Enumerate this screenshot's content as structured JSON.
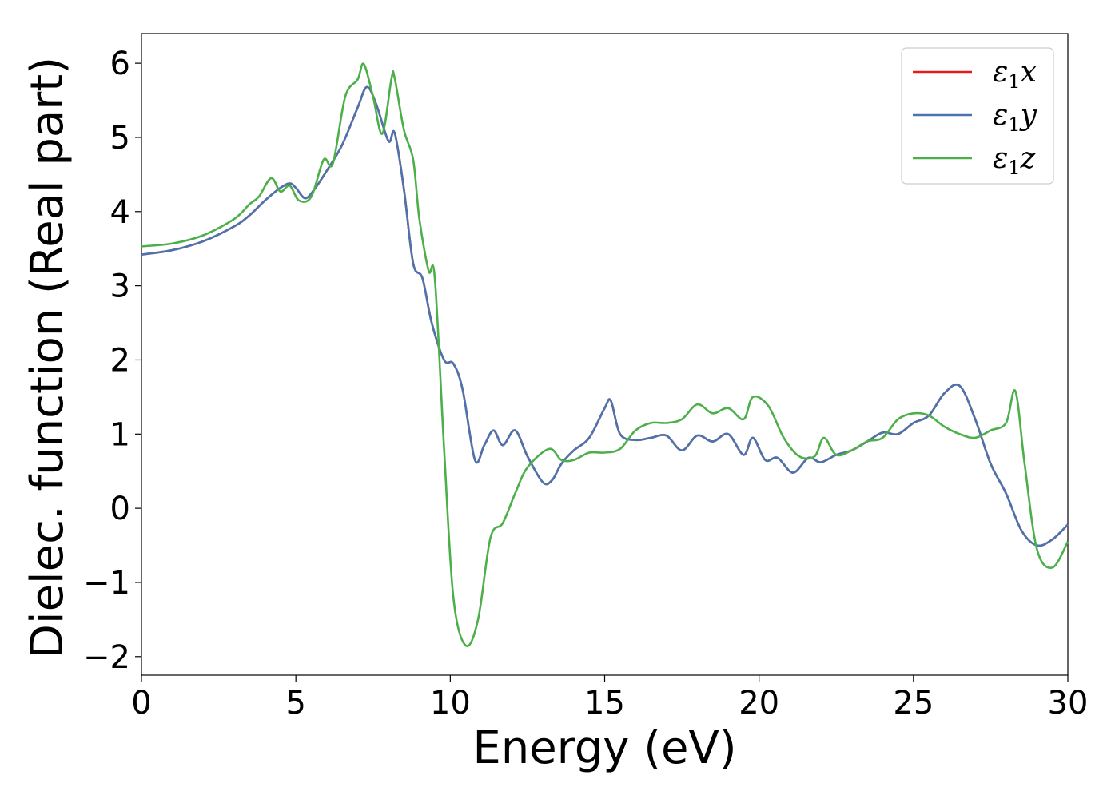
{
  "chart_data": {
    "type": "line",
    "title": "",
    "xlabel": "Energy (eV)",
    "ylabel": "Dielec. function (Real part)",
    "xlim": [
      0,
      30
    ],
    "ylim": [
      -2.25,
      6.4
    ],
    "xticks": [
      0,
      5,
      10,
      15,
      20,
      25,
      30
    ],
    "xtick_labels": [
      "0",
      "5",
      "10",
      "15",
      "20",
      "25",
      "30"
    ],
    "yticks": [
      -2,
      -1,
      0,
      1,
      2,
      3,
      4,
      5,
      6
    ],
    "ytick_labels": [
      "−2",
      "−1",
      "0",
      "1",
      "2",
      "3",
      "4",
      "5",
      "6"
    ],
    "grid": false,
    "legend_position": "top-right",
    "series": [
      {
        "name": "ε₁x",
        "legend_main": "ε",
        "legend_sub": "1",
        "legend_var": "x",
        "color": "#e41a1c",
        "x": [
          0,
          1,
          2,
          3,
          3.5,
          4,
          4.5,
          4.8,
          5,
          5.3,
          5.6,
          6,
          6.5,
          7,
          7.3,
          7.6,
          8,
          8.2,
          8.5,
          8.8,
          9.1,
          9.4,
          9.8,
          10.1,
          10.4,
          10.8,
          11.1,
          11.4,
          11.7,
          12.1,
          12.5,
          13,
          13.3,
          13.6,
          14,
          14.5,
          15,
          15.2,
          15.5,
          16,
          16.5,
          17,
          17.5,
          18,
          18.5,
          19,
          19.5,
          19.8,
          20.2,
          20.6,
          21.1,
          21.6,
          22,
          22.5,
          23,
          23.5,
          24,
          24.5,
          25,
          25.5,
          26,
          26.5,
          27,
          27.5,
          28,
          28.5,
          29,
          29.5,
          30
        ],
        "y": [
          3.42,
          3.48,
          3.6,
          3.8,
          3.95,
          4.15,
          4.32,
          4.38,
          4.32,
          4.18,
          4.3,
          4.55,
          4.9,
          5.4,
          5.68,
          5.45,
          4.95,
          5.06,
          4.3,
          3.3,
          3.1,
          2.5,
          2.0,
          1.95,
          1.6,
          0.65,
          0.85,
          1.05,
          0.85,
          1.05,
          0.7,
          0.35,
          0.38,
          0.6,
          0.78,
          0.95,
          1.35,
          1.45,
          1.0,
          0.92,
          0.95,
          0.98,
          0.78,
          0.98,
          0.9,
          1.0,
          0.72,
          0.95,
          0.65,
          0.68,
          0.48,
          0.68,
          0.62,
          0.72,
          0.78,
          0.9,
          1.02,
          1.0,
          1.15,
          1.25,
          1.55,
          1.65,
          1.2,
          0.6,
          0.2,
          -0.3,
          -0.5,
          -0.42,
          -0.22
        ]
      },
      {
        "name": "ε₁y",
        "legend_main": "ε",
        "legend_sub": "1",
        "legend_var": "y",
        "color": "#4a74ad",
        "x": [
          0,
          1,
          2,
          3,
          3.5,
          4,
          4.5,
          4.8,
          5,
          5.3,
          5.6,
          6,
          6.5,
          7,
          7.3,
          7.6,
          8,
          8.2,
          8.5,
          8.8,
          9.1,
          9.4,
          9.8,
          10.1,
          10.4,
          10.8,
          11.1,
          11.4,
          11.7,
          12.1,
          12.5,
          13,
          13.3,
          13.6,
          14,
          14.5,
          15,
          15.2,
          15.5,
          16,
          16.5,
          17,
          17.5,
          18,
          18.5,
          19,
          19.5,
          19.8,
          20.2,
          20.6,
          21.1,
          21.6,
          22,
          22.5,
          23,
          23.5,
          24,
          24.5,
          25,
          25.5,
          26,
          26.5,
          27,
          27.5,
          28,
          28.5,
          29,
          29.5,
          30
        ],
        "y": [
          3.42,
          3.48,
          3.6,
          3.8,
          3.95,
          4.15,
          4.32,
          4.38,
          4.32,
          4.18,
          4.3,
          4.55,
          4.9,
          5.4,
          5.68,
          5.45,
          4.95,
          5.06,
          4.3,
          3.3,
          3.1,
          2.5,
          2.0,
          1.95,
          1.6,
          0.65,
          0.85,
          1.05,
          0.85,
          1.05,
          0.7,
          0.35,
          0.38,
          0.6,
          0.78,
          0.95,
          1.35,
          1.45,
          1.0,
          0.92,
          0.95,
          0.98,
          0.78,
          0.98,
          0.9,
          1.0,
          0.72,
          0.95,
          0.65,
          0.68,
          0.48,
          0.68,
          0.62,
          0.72,
          0.78,
          0.9,
          1.02,
          1.0,
          1.15,
          1.25,
          1.55,
          1.65,
          1.2,
          0.6,
          0.2,
          -0.3,
          -0.5,
          -0.42,
          -0.22
        ]
      },
      {
        "name": "ε₁z",
        "legend_main": "ε",
        "legend_sub": "1",
        "legend_var": "z",
        "color": "#4daf4a",
        "x": [
          0,
          1,
          2,
          3,
          3.5,
          3.8,
          4.2,
          4.5,
          4.8,
          5.1,
          5.5,
          5.9,
          6.2,
          6.6,
          7,
          7.2,
          7.5,
          7.8,
          8.1,
          8.2,
          8.5,
          8.8,
          9.0,
          9.3,
          9.5,
          9.8,
          10.1,
          10.5,
          10.9,
          11.3,
          11.7,
          12.1,
          12.5,
          13.2,
          13.6,
          14,
          14.5,
          15,
          15.5,
          16,
          16.5,
          17,
          17.5,
          18,
          18.5,
          19,
          19.5,
          19.8,
          20.3,
          20.8,
          21.3,
          21.8,
          22.1,
          22.5,
          23,
          23.5,
          24,
          24.5,
          25,
          25.5,
          26,
          26.5,
          27,
          27.5,
          28,
          28.3,
          28.6,
          29,
          29.5,
          30
        ],
        "y": [
          3.53,
          3.57,
          3.68,
          3.9,
          4.1,
          4.2,
          4.45,
          4.27,
          4.35,
          4.15,
          4.2,
          4.7,
          4.65,
          5.55,
          5.78,
          5.99,
          5.55,
          5.05,
          5.8,
          5.8,
          5.1,
          4.7,
          3.9,
          3.2,
          3.1,
          0.8,
          -1.2,
          -1.85,
          -1.5,
          -0.4,
          -0.2,
          0.2,
          0.55,
          0.8,
          0.65,
          0.65,
          0.75,
          0.75,
          0.8,
          1.05,
          1.15,
          1.15,
          1.2,
          1.4,
          1.28,
          1.35,
          1.2,
          1.5,
          1.38,
          0.95,
          0.7,
          0.7,
          0.95,
          0.72,
          0.78,
          0.9,
          0.95,
          1.2,
          1.28,
          1.25,
          1.1,
          1.0,
          0.95,
          1.05,
          1.15,
          1.58,
          0.6,
          -0.55,
          -0.8,
          -0.45
        ]
      }
    ]
  }
}
